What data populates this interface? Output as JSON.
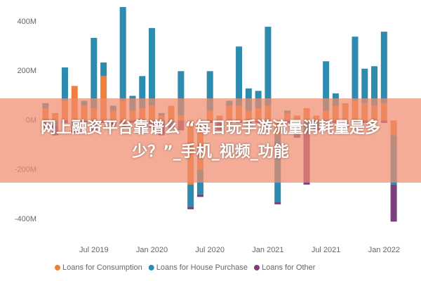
{
  "chart_data": {
    "type": "bar",
    "stacked": true,
    "categories": [
      null,
      null,
      null,
      null,
      null,
      "Jul 2019",
      null,
      null,
      null,
      null,
      null,
      "Jan 2020",
      null,
      null,
      null,
      null,
      null,
      "Jul 2020",
      null,
      null,
      null,
      null,
      null,
      "Jan 2021",
      null,
      null,
      null,
      null,
      null,
      "Jul 2021",
      null,
      null,
      null,
      null,
      null,
      "Jan 2022",
      null
    ],
    "series": [
      {
        "name": "Loans for Consumption",
        "color": "#f07f3c",
        "values": [
          50,
          30,
          80,
          140,
          60,
          50,
          180,
          40,
          80,
          40,
          50,
          60,
          20,
          60,
          20,
          -260,
          -200,
          40,
          20,
          60,
          60,
          40,
          50,
          60,
          -60,
          30,
          20,
          50,
          20,
          40,
          60,
          70,
          80,
          70,
          60,
          70,
          -60
        ]
      },
      {
        "name": "Loans for House Purchase",
        "color": "#2e8bb0",
        "values": [
          20,
          -20,
          135,
          -20,
          20,
          285,
          55,
          20,
          380,
          60,
          130,
          315,
          10,
          -20,
          180,
          -90,
          -100,
          160,
          -10,
          20,
          240,
          90,
          70,
          320,
          -270,
          10,
          -60,
          -40,
          -30,
          200,
          50,
          -20,
          260,
          140,
          160,
          290,
          -200
        ]
      },
      {
        "name": "Loans for Other",
        "color": "#7b3f7f",
        "values": [
          -30,
          -40,
          -10,
          -30,
          -10,
          -40,
          -10,
          -20,
          -30,
          -10,
          -20,
          -30,
          -60,
          -10,
          -40,
          -10,
          -10,
          -10,
          -30,
          -10,
          -10,
          -10,
          -10,
          -10,
          -10,
          -10,
          -10,
          -220,
          -10,
          -10,
          -10,
          -10,
          -10,
          -10,
          -10,
          -10,
          -150
        ]
      }
    ],
    "ylim": [
      -480,
      480
    ],
    "yticks": [
      {
        "value": -400,
        "label": "-400M"
      },
      {
        "value": -200,
        "label": "-200M"
      },
      {
        "value": 0,
        "label": "0M"
      },
      {
        "value": 200,
        "label": "200M"
      },
      {
        "value": 400,
        "label": "400M"
      }
    ],
    "grid": false,
    "legend": "bottom",
    "annotation": [
      "网上融资平台靠谱么 “每日玩手游流量消耗量是多",
      "少？”_手机_视频_功能"
    ]
  }
}
